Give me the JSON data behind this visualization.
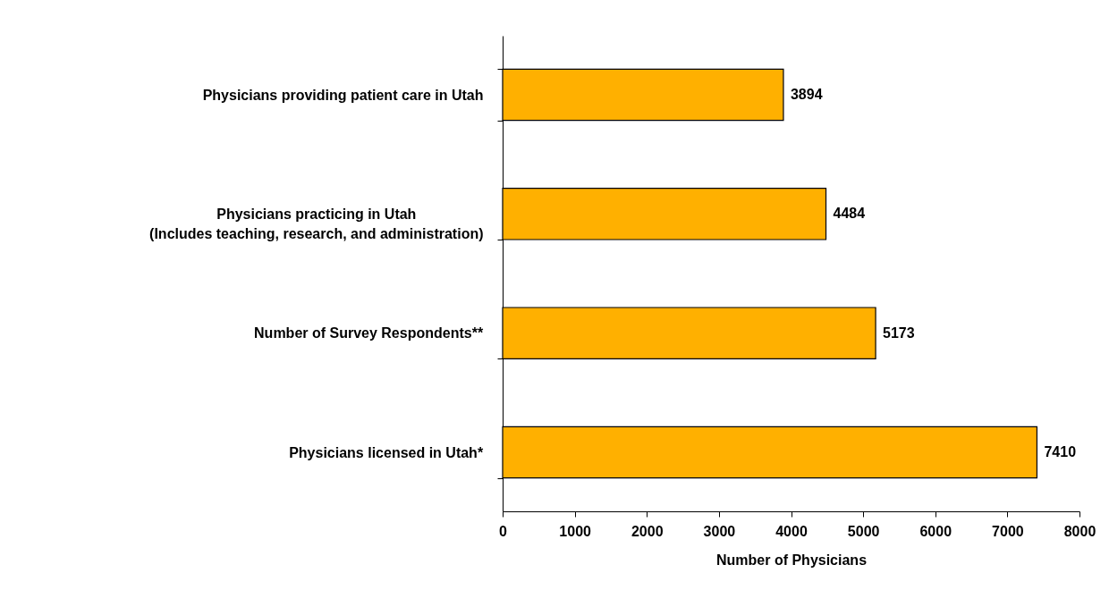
{
  "chart_data": {
    "type": "bar",
    "orientation": "horizontal",
    "categories": [
      "Physicians providing patient care in Utah",
      "Physicians practicing in Utah\n(Includes teaching, research, and administration)",
      "Number of Survey Respondents**",
      "Physicians licensed in Utah*"
    ],
    "values": [
      3894,
      4484,
      5173,
      7410
    ],
    "color": "#ffb000",
    "xlabel": "Number of Physicians",
    "xlim": [
      0,
      8000
    ],
    "xticks": [
      0,
      1000,
      2000,
      3000,
      4000,
      5000,
      6000,
      7000,
      8000
    ],
    "grid": false,
    "data_labels": true
  }
}
